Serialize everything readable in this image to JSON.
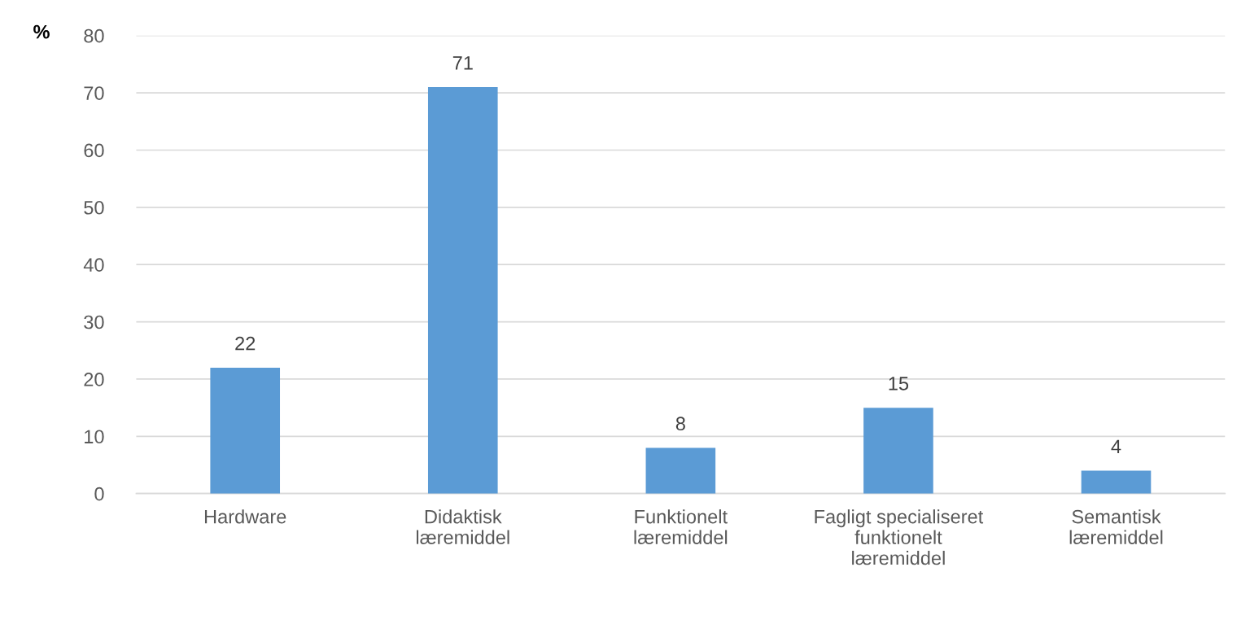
{
  "chart_data": {
    "type": "bar",
    "ylabel": "%",
    "categories": [
      "Hardware",
      "Didaktisk\nlæremiddel",
      "Funktionelt\nlæremiddel",
      "Fagligt specialiseret\nfunktionelt\nlæremiddel",
      "Semantisk\nlæremiddel"
    ],
    "values": [
      22,
      71,
      8,
      15,
      4
    ],
    "color": "#5b9bd5",
    "ylim": [
      0,
      80
    ],
    "yticks": [
      0,
      10,
      20,
      30,
      40,
      50,
      60,
      70,
      80
    ],
    "grid": "y",
    "data_labels": true,
    "legend": false
  }
}
